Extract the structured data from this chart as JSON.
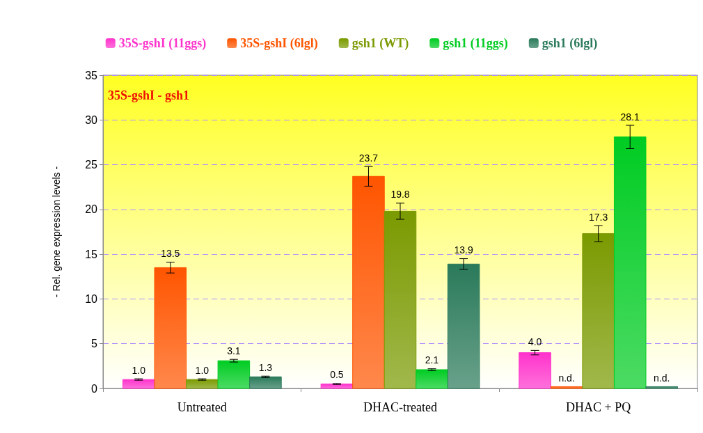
{
  "chart_data": {
    "type": "bar",
    "categories": [
      "Untreated",
      "DHAC-treated",
      "DHAC + PQ"
    ],
    "ylabel": "- Rel. gene expression levels -",
    "ylim": [
      0,
      35
    ],
    "yticks": [
      0,
      5,
      10,
      15,
      20,
      25,
      30,
      35
    ],
    "grid": "y",
    "legend": "top",
    "annotations": [
      "35S-gshI - gsh1"
    ],
    "series": [
      {
        "name": "35S-gshI (11ggs)",
        "color": "#ff33cc",
        "values": [
          1.0,
          0.5,
          4.0
        ],
        "errors": [
          0.08,
          0.05,
          0.25
        ],
        "value_labels": [
          "1.0",
          "0.5",
          "4.0"
        ]
      },
      {
        "name": "35S-gshI (6lgl)",
        "color": "#ff5500",
        "values": [
          13.5,
          23.7,
          0.2
        ],
        "errors": [
          0.6,
          1.1,
          null
        ],
        "value_labels": [
          "13.5",
          "23.7",
          "n.d."
        ]
      },
      {
        "name": "gsh1 (WT)",
        "color": "#7a9a00",
        "values": [
          1.0,
          19.8,
          17.3
        ],
        "errors": [
          0.08,
          0.9,
          0.9
        ],
        "value_labels": [
          "1.0",
          "19.8",
          "17.3"
        ]
      },
      {
        "name": "gsh1 (11ggs)",
        "color": "#00cc22",
        "values": [
          3.1,
          2.1,
          28.1
        ],
        "errors": [
          0.15,
          0.1,
          1.3
        ],
        "value_labels": [
          "3.1",
          "2.1",
          "28.1"
        ]
      },
      {
        "name": "gsh1 (6lgl)",
        "color": "#2a7a5a",
        "values": [
          1.3,
          13.9,
          0.2
        ],
        "errors": [
          0.08,
          0.6,
          null
        ],
        "value_labels": [
          "1.3",
          "13.9",
          "n.d."
        ]
      }
    ]
  }
}
